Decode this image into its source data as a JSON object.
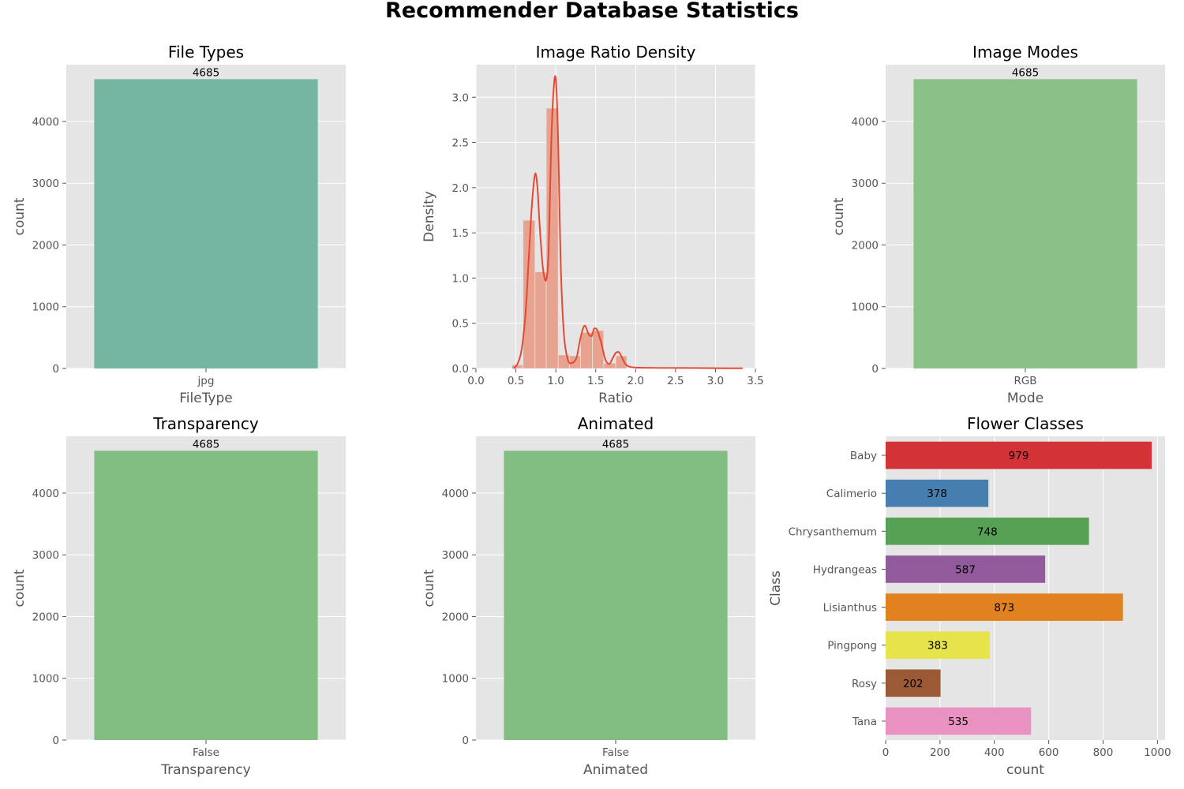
{
  "figure": {
    "suptitle": "Recommender Database Statistics"
  },
  "colors": {
    "panel_bg": "#e5e5e5",
    "grid": "#ffffff",
    "tick_text": "#555555",
    "filetypes_bar": "#74b6a2",
    "modes_bar": "#8bc088",
    "transparency_bar": "#82bd82",
    "animated_bar": "#82bd82",
    "hist_fill": "#e7a290",
    "kde_line": "#e24a33"
  },
  "chart_data": [
    {
      "id": "filetypes",
      "type": "bar",
      "title": "File Types",
      "xlabel": "FileType",
      "ylabel": "count",
      "categories": [
        "jpg"
      ],
      "values": [
        4685
      ],
      "data_labels": [
        "4685"
      ],
      "ylim": [
        0,
        4919
      ],
      "yticks": [
        0,
        1000,
        2000,
        3000,
        4000
      ],
      "grid": true
    },
    {
      "id": "ratio",
      "type": "histogram",
      "title": "Image Ratio Density",
      "xlabel": "Ratio",
      "ylabel": "Density",
      "xlim": [
        0,
        3.5
      ],
      "ylim": [
        0,
        3.36
      ],
      "xticks": [
        0,
        0.5,
        1.0,
        1.5,
        2.0,
        2.5,
        3.0,
        3.5
      ],
      "yticks": [
        0,
        0.5,
        1.0,
        1.5,
        2.0,
        2.5,
        3.0
      ],
      "bins": [
        {
          "x0": 0.45,
          "x1": 0.59,
          "density": 0.04
        },
        {
          "x0": 0.59,
          "x1": 0.74,
          "density": 1.64
        },
        {
          "x0": 0.74,
          "x1": 0.88,
          "density": 1.07
        },
        {
          "x0": 0.88,
          "x1": 1.03,
          "density": 2.88
        },
        {
          "x0": 1.03,
          "x1": 1.17,
          "density": 0.15
        },
        {
          "x0": 1.17,
          "x1": 1.31,
          "density": 0.14
        },
        {
          "x0": 1.31,
          "x1": 1.46,
          "density": 0.4
        },
        {
          "x0": 1.46,
          "x1": 1.6,
          "density": 0.42
        },
        {
          "x0": 1.6,
          "x1": 1.75,
          "density": 0.06
        },
        {
          "x0": 1.75,
          "x1": 1.89,
          "density": 0.14
        }
      ],
      "kde": {
        "x": [
          0.47,
          0.52,
          0.57,
          0.62,
          0.66,
          0.7,
          0.74,
          0.77,
          0.8,
          0.84,
          0.88,
          0.91,
          0.94,
          0.97,
          1.0,
          1.03,
          1.06,
          1.1,
          1.15,
          1.2,
          1.26,
          1.3,
          1.34,
          1.37,
          1.41,
          1.45,
          1.48,
          1.52,
          1.57,
          1.62,
          1.67,
          1.71,
          1.75,
          1.79,
          1.83,
          1.87,
          1.92,
          2.0,
          2.1,
          2.3,
          2.6,
          3.0,
          3.34
        ],
        "y": [
          0.0,
          0.05,
          0.2,
          0.6,
          1.2,
          1.8,
          2.15,
          2.0,
          1.55,
          1.1,
          0.98,
          1.3,
          2.4,
          3.05,
          3.2,
          2.5,
          1.2,
          0.4,
          0.1,
          0.06,
          0.12,
          0.3,
          0.44,
          0.47,
          0.38,
          0.36,
          0.44,
          0.42,
          0.28,
          0.1,
          0.05,
          0.11,
          0.17,
          0.18,
          0.12,
          0.05,
          0.02,
          0.01,
          0.008,
          0.006,
          0.005,
          0.003,
          0.002
        ]
      },
      "grid": true
    },
    {
      "id": "modes",
      "type": "bar",
      "title": "Image Modes",
      "xlabel": "Mode",
      "ylabel": "count",
      "categories": [
        "RGB"
      ],
      "values": [
        4685
      ],
      "data_labels": [
        "4685"
      ],
      "ylim": [
        0,
        4919
      ],
      "yticks": [
        0,
        1000,
        2000,
        3000,
        4000
      ],
      "grid": true
    },
    {
      "id": "transparency",
      "type": "bar",
      "title": "Transparency",
      "xlabel": "Transparency",
      "ylabel": "count",
      "categories": [
        "False"
      ],
      "values": [
        4685
      ],
      "data_labels": [
        "4685"
      ],
      "ylim": [
        0,
        4919
      ],
      "yticks": [
        0,
        1000,
        2000,
        3000,
        4000
      ],
      "grid": true
    },
    {
      "id": "animated",
      "type": "bar",
      "title": "Animated",
      "xlabel": "Animated",
      "ylabel": "count",
      "categories": [
        "False"
      ],
      "values": [
        4685
      ],
      "data_labels": [
        "4685"
      ],
      "ylim": [
        0,
        4919
      ],
      "yticks": [
        0,
        1000,
        2000,
        3000,
        4000
      ],
      "grid": true
    },
    {
      "id": "classes",
      "type": "bar",
      "orientation": "horizontal",
      "title": "Flower Classes",
      "xlabel": "count",
      "ylabel": "Class",
      "categories": [
        "Baby",
        "Calimerio",
        "Chrysanthemum",
        "Hydrangeas",
        "Lisianthus",
        "Pingpong",
        "Rosy",
        "Tana"
      ],
      "values": [
        979,
        378,
        748,
        587,
        873,
        383,
        202,
        535
      ],
      "data_labels": [
        "979",
        "378",
        "748",
        "587",
        "873",
        "383",
        "202",
        "535"
      ],
      "colors": [
        "#d33236",
        "#467eb0",
        "#57a155",
        "#915b9b",
        "#e28120",
        "#e7e34a",
        "#9b5936",
        "#e991c1"
      ],
      "xlim": [
        0,
        1028
      ],
      "xticks": [
        0,
        200,
        400,
        600,
        800,
        1000
      ],
      "grid": true
    }
  ]
}
